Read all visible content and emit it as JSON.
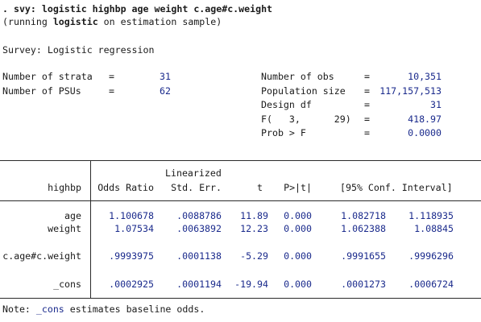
{
  "command": {
    "prompt": ". svy: logistic highbp age weight c.age#c.weight",
    "running_prefix": "(running ",
    "running_cmd": "logistic",
    "running_suffix": " on estimation sample)"
  },
  "survey_title": "Survey: Logistic regression",
  "left_stats": [
    {
      "label": "Number of strata",
      "eq": "=",
      "value": "31"
    },
    {
      "label": "Number of PSUs",
      "eq": "=",
      "value": "62"
    }
  ],
  "right_stats": [
    {
      "label": "Number of obs",
      "eq": "=",
      "value": "10,351"
    },
    {
      "label": "Population size",
      "eq": "=",
      "value": "117,157,513"
    },
    {
      "label": "Design df",
      "eq": "=",
      "value": "31"
    },
    {
      "label": "F(   3,      29)",
      "eq": "=",
      "value": "418.97"
    },
    {
      "label": "Prob > F",
      "eq": "=",
      "value": "0.0000"
    }
  ],
  "table": {
    "depvar": "highbp",
    "header_top": "Linearized",
    "columns": [
      "Odds Ratio",
      "Std. Err.",
      "t",
      "P>|t|",
      "[95% Conf. Interval]"
    ],
    "rows": [
      {
        "name": "age",
        "or": "1.100678",
        "se": ".0088786",
        "t": "11.89",
        "p": "0.000",
        "lo": "1.082718",
        "hi": "1.118935"
      },
      {
        "name": "weight",
        "or": "1.07534",
        "se": ".0063892",
        "t": "12.23",
        "p": "0.000",
        "lo": "1.062388",
        "hi": "1.08845"
      },
      {
        "name": "c.age#c.weight",
        "or": ".9993975",
        "se": ".0001138",
        "t": "-5.29",
        "p": "0.000",
        "lo": ".9991655",
        "hi": ".9996296"
      },
      {
        "name": "_cons",
        "or": ".0002925",
        "se": ".0001194",
        "t": "-19.94",
        "p": "0.000",
        "lo": ".0001273",
        "hi": ".0006724"
      }
    ]
  },
  "note": {
    "prefix": "Note: ",
    "link": "_cons",
    "suffix": " estimates baseline odds."
  },
  "colors": {
    "text": "#1a1a1a",
    "value_blue": "#1a2a8c"
  }
}
